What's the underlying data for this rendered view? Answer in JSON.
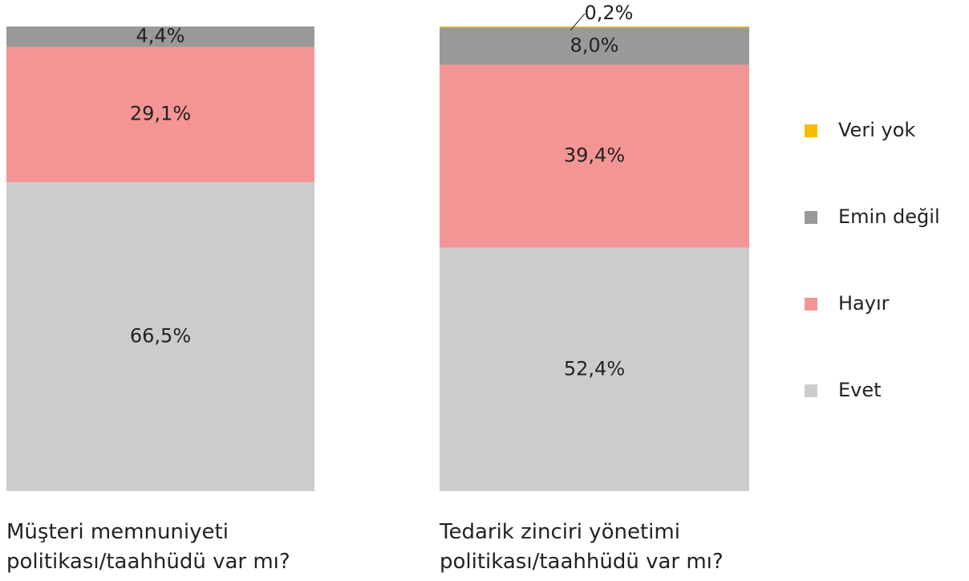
{
  "chart_data": {
    "type": "stacked_bar",
    "categories": [
      "Müşteri memnuniyeti politikası/taahhüdü var mı?",
      "Tedarik zinciri yönetimi politikası/taahhüdü var mı?"
    ],
    "series": [
      {
        "name": "Evet",
        "color": "#cccccc",
        "values": [
          66.5,
          52.4
        ],
        "value_labels": [
          "66,5%",
          "52,4%"
        ]
      },
      {
        "name": "Hayır",
        "color": "#f49595",
        "values": [
          29.1,
          39.4
        ],
        "value_labels": [
          "29,1%",
          "39,4%"
        ]
      },
      {
        "name": "Emin değil",
        "color": "#999999",
        "values": [
          4.4,
          8.0
        ],
        "value_labels": [
          "4,4%",
          "8,0%"
        ]
      },
      {
        "name": "Veri yok",
        "color": "#f5bc00",
        "values": [
          null,
          0.2
        ],
        "value_labels": [
          null,
          "0,2%"
        ]
      }
    ],
    "ylim": [
      0,
      100
    ],
    "legend": "right"
  }
}
